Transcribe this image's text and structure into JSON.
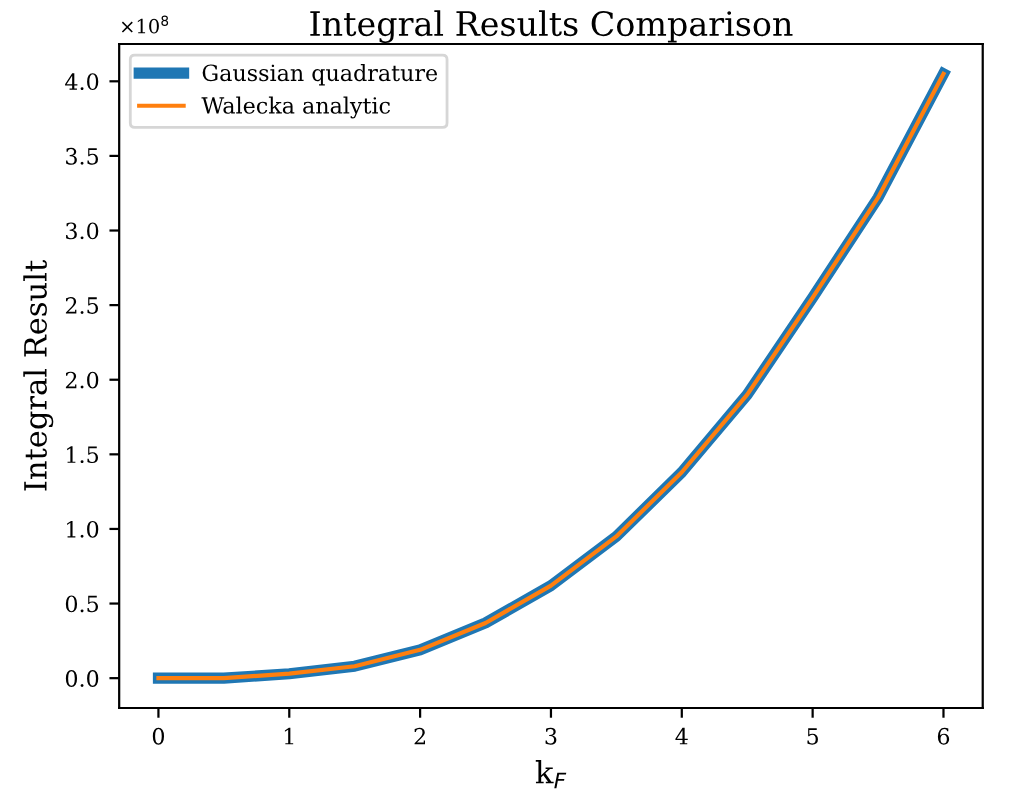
{
  "chart_data": {
    "type": "line",
    "title": "Integral Results Comparison",
    "xlabel": "k$_{F}$",
    "ylabel": "Integral Result",
    "annotations": [
      "×10$^{8}$"
    ],
    "x": [
      0,
      0.5,
      1,
      1.5,
      2,
      2.5,
      3,
      3.5,
      4,
      4.5,
      5,
      5.5,
      6
    ],
    "series": [
      {
        "name": "Gaussian quadrature",
        "color": "#1f77b4",
        "values": [
          0,
          0,
          0.03,
          0.08,
          0.19,
          0.37,
          0.62,
          0.95,
          1.38,
          1.9,
          2.55,
          3.22,
          4.05
        ]
      },
      {
        "name": "Walecka analytic",
        "color": "#ff7f0e",
        "values": [
          0,
          0,
          0.03,
          0.08,
          0.19,
          0.37,
          0.62,
          0.95,
          1.38,
          1.9,
          2.55,
          3.22,
          4.05
        ]
      }
    ],
    "xlim": [
      -0.3,
      6.3
    ],
    "ylim": [
      -0.2,
      4.25
    ],
    "xticks": [
      0,
      1,
      2,
      3,
      4,
      5,
      6
    ],
    "yticks": [
      {
        "value": 0,
        "label": "0.0"
      },
      {
        "value": 0.5,
        "label": "0.5"
      },
      {
        "value": 1,
        "label": "1.0"
      },
      {
        "value": 1.5,
        "label": "1.5"
      },
      {
        "value": 2,
        "label": "2.0"
      },
      {
        "value": 2.5,
        "label": "2.5"
      },
      {
        "value": 3,
        "label": "3.0"
      },
      {
        "value": 3.5,
        "label": "3.5"
      },
      {
        "value": 4,
        "label": "4.0"
      }
    ],
    "grid": false,
    "legend": "top left",
    "marker": "none",
    "line_style": "solid"
  }
}
